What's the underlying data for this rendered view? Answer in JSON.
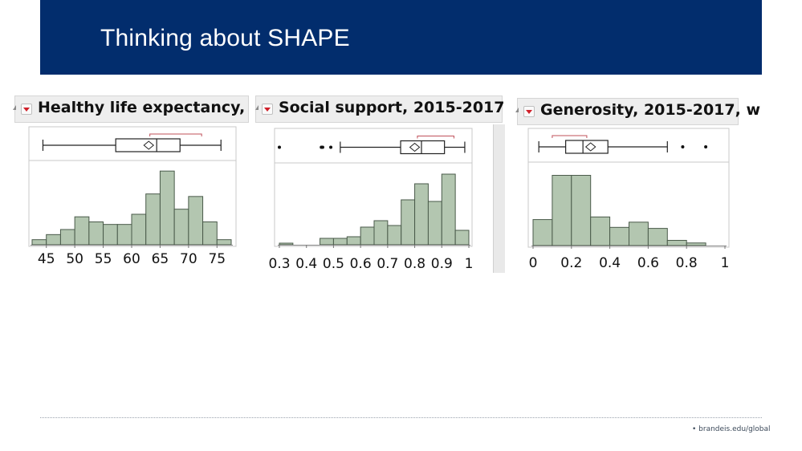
{
  "header": {
    "title": "Thinking about SHAPE",
    "bg_color": "#022d6d"
  },
  "footer": {
    "link": "• brandeis.edu/global"
  },
  "colors": {
    "bar_fill": "#b3c6b0",
    "bar_stroke": "#4a5a4a",
    "shortest_half": "#c0505a",
    "frame": "#c8c8c8"
  },
  "chart_data": [
    {
      "type": "bar",
      "title": "Healthy life expectancy,",
      "xlabel": "",
      "ylabel": "",
      "xlim": [
        42.5,
        77.5
      ],
      "ticks": [
        45,
        50,
        55,
        60,
        65,
        70,
        75
      ],
      "tick_labels": [
        "45",
        "50",
        "55",
        "60",
        "65",
        "70",
        "75"
      ],
      "bin_width": 2.5,
      "bins": [
        42.5,
        45,
        47.5,
        50,
        52.5,
        55,
        57.5,
        60,
        62.5,
        65,
        67.5,
        70,
        72.5,
        75
      ],
      "values": [
        1,
        2,
        3,
        5.5,
        4.5,
        4,
        4,
        6,
        10,
        14.5,
        7,
        9.5,
        4.5,
        1
      ],
      "boxplot": {
        "whisker_low": 44.4,
        "q1": 57.2,
        "median": 64.4,
        "mean": 63.0,
        "q3": 68.5,
        "whisker_high": 75.7,
        "outliers": [],
        "shortest_half": [
          63.2,
          72.3
        ]
      }
    },
    {
      "type": "bar",
      "title": "Social support, 2015-2017",
      "xlabel": "",
      "ylabel": "",
      "xlim": [
        0.3,
        1.0
      ],
      "ticks": [
        0.3,
        0.4,
        0.5,
        0.6,
        0.7,
        0.8,
        0.9,
        1.0
      ],
      "tick_labels": [
        "0.3",
        "0.4",
        "0.5",
        "0.6",
        "0.7",
        "0.8",
        "0.9",
        "1"
      ],
      "bin_width": 0.05,
      "bins": [
        0.3,
        0.35,
        0.4,
        0.45,
        0.5,
        0.55,
        0.6,
        0.65,
        0.7,
        0.75,
        0.8,
        0.85,
        0.9,
        0.95
      ],
      "values": [
        0.5,
        0,
        0,
        2,
        2,
        2.5,
        5.5,
        7.5,
        6,
        14,
        19,
        13.5,
        22,
        4.5
      ],
      "boxplot": {
        "whisker_low": 0.525,
        "q1": 0.748,
        "median": 0.825,
        "mean": 0.8,
        "q3": 0.91,
        "whisker_high": 0.985,
        "outliers": [
          0.3,
          0.455,
          0.46,
          0.49
        ],
        "shortest_half": [
          0.81,
          0.945
        ]
      }
    },
    {
      "type": "bar",
      "title": "Generosity, 2015-2017, w",
      "xlabel": "",
      "ylabel": "",
      "xlim": [
        0,
        1.0
      ],
      "ticks": [
        0,
        0.2,
        0.4,
        0.6,
        0.8,
        1.0
      ],
      "tick_labels": [
        "0",
        "0.2",
        "0.4",
        "0.6",
        "0.8",
        "1"
      ],
      "bin_width": 0.1,
      "bins": [
        0,
        0.1,
        0.2,
        0.3,
        0.4,
        0.5,
        0.6,
        0.7,
        0.8
      ],
      "values": [
        5,
        13.5,
        13.5,
        5.5,
        3.5,
        4.5,
        3.3,
        1,
        0.5
      ],
      "boxplot": {
        "whisker_low": 0.03,
        "q1": 0.17,
        "median": 0.26,
        "mean": 0.3,
        "q3": 0.39,
        "whisker_high": 0.7,
        "outliers": [
          0.78,
          0.9
        ],
        "shortest_half": [
          0.1,
          0.28
        ]
      }
    }
  ]
}
